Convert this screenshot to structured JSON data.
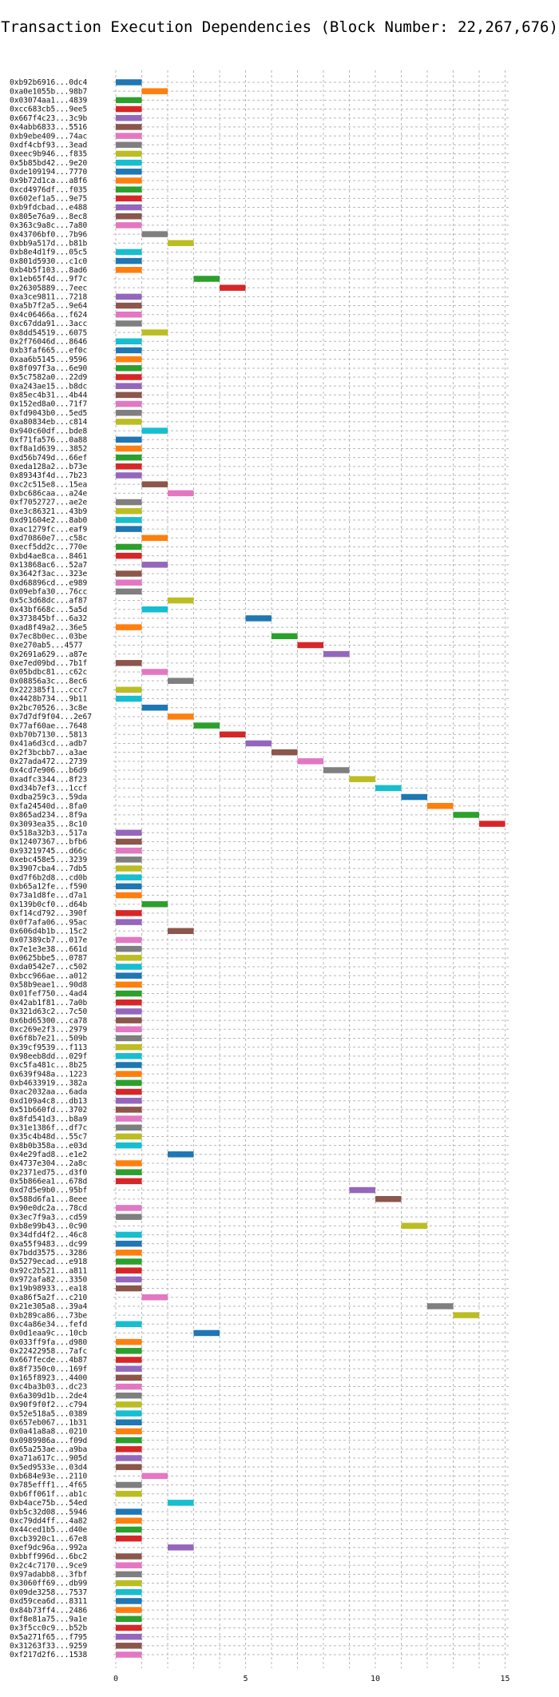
{
  "chart_data": {
    "type": "bar",
    "orientation": "horizontal-gantt",
    "title": "Transaction Execution Dependencies (Block Number: 22,267,676)",
    "xlabel": "",
    "ylabel": "",
    "xlim": [
      0,
      15
    ],
    "xticks": [
      0,
      5,
      10,
      15
    ],
    "grid": true,
    "palette": [
      "#1f77b4",
      "#ff7f0e",
      "#2ca02c",
      "#d62728",
      "#9467bd",
      "#8c564b",
      "#e377c2",
      "#7f7f7f",
      "#bcbd22",
      "#17becf"
    ],
    "bar_width": 1,
    "tasks": [
      {
        "label": "0xb92b6916...0dc4",
        "start": 0
      },
      {
        "label": "0xa0e1055b...98b7",
        "start": 1
      },
      {
        "label": "0x03074aa1...4839",
        "start": 0
      },
      {
        "label": "0xcc683cb5...9ee5",
        "start": 0
      },
      {
        "label": "0x667f4c23...3c9b",
        "start": 0
      },
      {
        "label": "0x4abb6833...5516",
        "start": 0
      },
      {
        "label": "0xb9ebe409...74ac",
        "start": 0
      },
      {
        "label": "0xdf4cbf93...3ead",
        "start": 0
      },
      {
        "label": "0xeec9b946...f835",
        "start": 0
      },
      {
        "label": "0x5b85bd42...9e20",
        "start": 0
      },
      {
        "label": "0xde109194...7770",
        "start": 0
      },
      {
        "label": "0x9b72d1ca...a8f6",
        "start": 0
      },
      {
        "label": "0xcd4976df...f035",
        "start": 0
      },
      {
        "label": "0x602ef1a5...9e75",
        "start": 0
      },
      {
        "label": "0xb9fdcbad...e488",
        "start": 0
      },
      {
        "label": "0x805e76a9...8ec8",
        "start": 0
      },
      {
        "label": "0x363c9a8c...7a80",
        "start": 0
      },
      {
        "label": "0x43706bf0...7b96",
        "start": 1
      },
      {
        "label": "0xbb9a517d...b81b",
        "start": 2
      },
      {
        "label": "0xb8e4d1f9...05c5",
        "start": 0
      },
      {
        "label": "0x801d5930...c1c0",
        "start": 0
      },
      {
        "label": "0xb4b5f103...8ad6",
        "start": 0
      },
      {
        "label": "0x1eb65f4d...9f7c",
        "start": 3
      },
      {
        "label": "0x26305889...7eec",
        "start": 4
      },
      {
        "label": "0xa3ce9811...7218",
        "start": 0
      },
      {
        "label": "0xa5b7f2a5...9e64",
        "start": 0
      },
      {
        "label": "0x4c06466a...f624",
        "start": 0
      },
      {
        "label": "0xc67dda91...3acc",
        "start": 0
      },
      {
        "label": "0x8dd54519...6075",
        "start": 1
      },
      {
        "label": "0x2f76046d...8646",
        "start": 0
      },
      {
        "label": "0xb3faf665...ef0c",
        "start": 0
      },
      {
        "label": "0xaa6b5145...9596",
        "start": 0
      },
      {
        "label": "0x8f097f3a...6e90",
        "start": 0
      },
      {
        "label": "0x5c7582a0...22d9",
        "start": 0
      },
      {
        "label": "0xa243ae15...b8dc",
        "start": 0
      },
      {
        "label": "0x85ec4b31...4b44",
        "start": 0
      },
      {
        "label": "0x152ed8a0...71f7",
        "start": 0
      },
      {
        "label": "0xfd9043b0...5ed5",
        "start": 0
      },
      {
        "label": "0xa80834eb...c814",
        "start": 0
      },
      {
        "label": "0x940c60df...bde8",
        "start": 1
      },
      {
        "label": "0xf71fa576...0a88",
        "start": 0
      },
      {
        "label": "0xf8a1d639...3852",
        "start": 0
      },
      {
        "label": "0xd56b749d...66ef",
        "start": 0
      },
      {
        "label": "0xeda128a2...b73e",
        "start": 0
      },
      {
        "label": "0x89343f4d...7b23",
        "start": 0
      },
      {
        "label": "0xc2c515e8...15ea",
        "start": 1
      },
      {
        "label": "0xbc686caa...a24e",
        "start": 2
      },
      {
        "label": "0xf7052727...ae2e",
        "start": 0
      },
      {
        "label": "0xe3c86321...43b9",
        "start": 0
      },
      {
        "label": "0xd91604e2...8ab0",
        "start": 0
      },
      {
        "label": "0xac1279fc...eaf9",
        "start": 0
      },
      {
        "label": "0xd70860e7...c58c",
        "start": 1
      },
      {
        "label": "0xecf5dd2c...770e",
        "start": 0
      },
      {
        "label": "0xbd4ae8ca...8461",
        "start": 0
      },
      {
        "label": "0x13868ac6...52a7",
        "start": 1
      },
      {
        "label": "0x3642f3ac...323e",
        "start": 0
      },
      {
        "label": "0xd68896cd...e989",
        "start": 0
      },
      {
        "label": "0x09ebfa30...76cc",
        "start": 0
      },
      {
        "label": "0x5c3d68dc...af87",
        "start": 2
      },
      {
        "label": "0x43bf668c...5a5d",
        "start": 1
      },
      {
        "label": "0x373845bf...6a32",
        "start": 5
      },
      {
        "label": "0xad8f49a2...36e5",
        "start": 0
      },
      {
        "label": "0x7ec8b0ec...03be",
        "start": 6
      },
      {
        "label": "0xe270ab5...4577",
        "start": 7
      },
      {
        "label": "0x2691a629...a87e",
        "start": 8
      },
      {
        "label": "0xe7ed09bd...7b1f",
        "start": 0
      },
      {
        "label": "0x05bdbc81...c62c",
        "start": 1
      },
      {
        "label": "0x08856a3c...8ec6",
        "start": 2
      },
      {
        "label": "0x222385f1...ccc7",
        "start": 0
      },
      {
        "label": "0x4428b734...9b11",
        "start": 0
      },
      {
        "label": "0x2bc70526...3c8e",
        "start": 1
      },
      {
        "label": "0x7d7df9f04...2e67",
        "start": 2
      },
      {
        "label": "0x77af60ae...7648",
        "start": 3
      },
      {
        "label": "0xb70b7130...5813",
        "start": 4
      },
      {
        "label": "0x41a6d3cd...adb7",
        "start": 5
      },
      {
        "label": "0x2f3bcbb7...a3ae",
        "start": 6
      },
      {
        "label": "0x27ada472...2739",
        "start": 7
      },
      {
        "label": "0x4cd7e906...b6d9",
        "start": 8
      },
      {
        "label": "0xadfc3344...8f23",
        "start": 9
      },
      {
        "label": "0xd34b7ef3...1ccf",
        "start": 10
      },
      {
        "label": "0xdba259c3...59da",
        "start": 11
      },
      {
        "label": "0xfa24540d...8fa0",
        "start": 12
      },
      {
        "label": "0x865ad234...8f9a",
        "start": 13
      },
      {
        "label": "0x3093ea35...8c10",
        "start": 14
      },
      {
        "label": "0x518a32b3...517a",
        "start": 0
      },
      {
        "label": "0x12407367...bfb6",
        "start": 0
      },
      {
        "label": "0x93219745...d66c",
        "start": 0
      },
      {
        "label": "0xebc458e5...3239",
        "start": 0
      },
      {
        "label": "0x3907cba4...7db5",
        "start": 0
      },
      {
        "label": "0xd7f6b2d8...cd0b",
        "start": 0
      },
      {
        "label": "0xb65a12fe...f590",
        "start": 0
      },
      {
        "label": "0x73a1d8fe...d7a1",
        "start": 0
      },
      {
        "label": "0x139b0cf0...d64b",
        "start": 1
      },
      {
        "label": "0xf14cd792...390f",
        "start": 0
      },
      {
        "label": "0x0f7afa06...95ac",
        "start": 0
      },
      {
        "label": "0x606d4b1b...15c2",
        "start": 2
      },
      {
        "label": "0x07389cb7...017e",
        "start": 0
      },
      {
        "label": "0x7e1e3e38...661d",
        "start": 0
      },
      {
        "label": "0x0625bbe5...0787",
        "start": 0
      },
      {
        "label": "0xda0542e7...c502",
        "start": 0
      },
      {
        "label": "0xbcc966ae...a012",
        "start": 0
      },
      {
        "label": "0x58b9eae1...90d8",
        "start": 0
      },
      {
        "label": "0x01fef750...4ad4",
        "start": 0
      },
      {
        "label": "0x42ab1f81...7a0b",
        "start": 0
      },
      {
        "label": "0x321d63c2...7c50",
        "start": 0
      },
      {
        "label": "0x6bd65300...ca78",
        "start": 0
      },
      {
        "label": "0xc269e2f3...2979",
        "start": 0
      },
      {
        "label": "0x6f8b7e21...509b",
        "start": 0
      },
      {
        "label": "0x39cf9539...f113",
        "start": 0
      },
      {
        "label": "0x98eeb8dd...029f",
        "start": 0
      },
      {
        "label": "0xc5fa481c...8b25",
        "start": 0
      },
      {
        "label": "0x639f948a...1223",
        "start": 0
      },
      {
        "label": "0xb4633919...382a",
        "start": 0
      },
      {
        "label": "0xac2032aa...6ada",
        "start": 0
      },
      {
        "label": "0xd109a4c8...db13",
        "start": 0
      },
      {
        "label": "0x51b660fd...3702",
        "start": 0
      },
      {
        "label": "0x8fd541d3...b8a9",
        "start": 0
      },
      {
        "label": "0x31e1386f...df7c",
        "start": 0
      },
      {
        "label": "0x35c4b48d...55c7",
        "start": 0
      },
      {
        "label": "0x8b0b358a...e03d",
        "start": 0
      },
      {
        "label": "0x4e29fad8...e1e2",
        "start": 2
      },
      {
        "label": "0x4737e304...2a8c",
        "start": 0
      },
      {
        "label": "0x2371ed75...d3f0",
        "start": 0
      },
      {
        "label": "0x5b866ea1...678d",
        "start": 0
      },
      {
        "label": "0xd7d5e9b0...95bf",
        "start": 9
      },
      {
        "label": "0x588d6fa1...8eee",
        "start": 10
      },
      {
        "label": "0x90e0dc2a...78cd",
        "start": 0
      },
      {
        "label": "0x3ec7f9a3...cd59",
        "start": 0
      },
      {
        "label": "0xb8e99b43...0c90",
        "start": 11
      },
      {
        "label": "0x34dfd4f2...46c8",
        "start": 0
      },
      {
        "label": "0xa55f9483...dc99",
        "start": 0
      },
      {
        "label": "0x7bdd3575...3286",
        "start": 0
      },
      {
        "label": "0x5279ecad...e918",
        "start": 0
      },
      {
        "label": "0x92c2b521...a811",
        "start": 0
      },
      {
        "label": "0x972afa82...3350",
        "start": 0
      },
      {
        "label": "0x19b98933...ea18",
        "start": 0
      },
      {
        "label": "0xa86f5a2f...c210",
        "start": 1
      },
      {
        "label": "0x21e305a8...39a4",
        "start": 12
      },
      {
        "label": "0xb289ca86...73be",
        "start": 13
      },
      {
        "label": "0xc4a86e34...fefd",
        "start": 0
      },
      {
        "label": "0x0d1eaa9c...10cb",
        "start": 3
      },
      {
        "label": "0x033ff9fa...d980",
        "start": 0
      },
      {
        "label": "0x22422958...7afc",
        "start": 0
      },
      {
        "label": "0x667fecde...4b87",
        "start": 0
      },
      {
        "label": "0x8f7350c0...169f",
        "start": 0
      },
      {
        "label": "0x165f8923...4400",
        "start": 0
      },
      {
        "label": "0xc4ba3b03...dc23",
        "start": 0
      },
      {
        "label": "0x6a309d1b...2de4",
        "start": 0
      },
      {
        "label": "0x90f9f0f2...c794",
        "start": 0
      },
      {
        "label": "0x52e518a5...0389",
        "start": 0
      },
      {
        "label": "0x657eb067...1b31",
        "start": 0
      },
      {
        "label": "0x0a41a8a8...0210",
        "start": 0
      },
      {
        "label": "0x0989986a...f09d",
        "start": 0
      },
      {
        "label": "0x65a253ae...a9ba",
        "start": 0
      },
      {
        "label": "0xa71a617c...905d",
        "start": 0
      },
      {
        "label": "0x5ed9533e...03d4",
        "start": 0
      },
      {
        "label": "0xb684e93e...2110",
        "start": 1
      },
      {
        "label": "0x785efff1...4f65",
        "start": 0
      },
      {
        "label": "0xb6ff061f...ab1c",
        "start": 0
      },
      {
        "label": "0xb4ace75b...54ed",
        "start": 2
      },
      {
        "label": "0xb5c32d08...5946",
        "start": 0
      },
      {
        "label": "0xc79dd4ff...4a82",
        "start": 0
      },
      {
        "label": "0x44ced1b5...d40e",
        "start": 0
      },
      {
        "label": "0xcb3920c1...67e8",
        "start": 0
      },
      {
        "label": "0xef9dc96a...992a",
        "start": 2
      },
      {
        "label": "0xbbff996d...6bc2",
        "start": 0
      },
      {
        "label": "0x2c4c7170...9ce9",
        "start": 0
      },
      {
        "label": "0x97adabb8...3fbf",
        "start": 0
      },
      {
        "label": "0x3060ff69...db99",
        "start": 0
      },
      {
        "label": "0x09de3258...7537",
        "start": 0
      },
      {
        "label": "0xd59cea6d...8311",
        "start": 0
      },
      {
        "label": "0x84b73ff4...2486",
        "start": 0
      },
      {
        "label": "0xf8e81a75...9a1e",
        "start": 0
      },
      {
        "label": "0x3f5cc0c9...b52b",
        "start": 0
      },
      {
        "label": "0x5a271f65...f795",
        "start": 0
      },
      {
        "label": "0x31263f33...9259",
        "start": 0
      },
      {
        "label": "0xf217d2f6...1538",
        "start": 0
      }
    ]
  }
}
